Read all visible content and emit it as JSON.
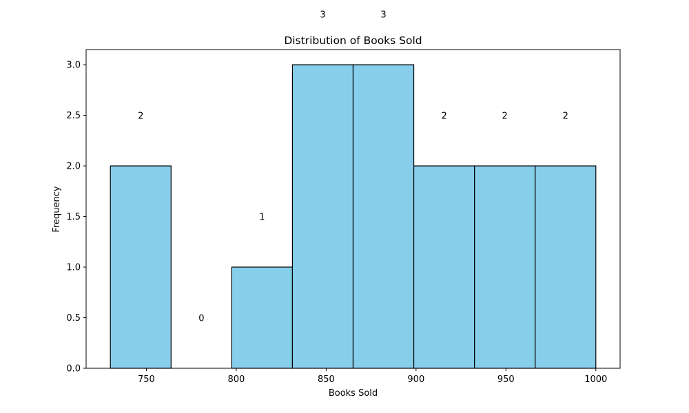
{
  "chart_data": {
    "type": "bar",
    "title": "Distribution of Books Sold",
    "xlabel": "Books Sold",
    "ylabel": "Frequency",
    "bin_edges": [
      730,
      763.75,
      797.5,
      831.25,
      865,
      898.75,
      932.5,
      966.25,
      1000
    ],
    "values": [
      2,
      0,
      1,
      3,
      3,
      2,
      2,
      2
    ],
    "data_labels": [
      "2",
      "0",
      "1",
      "3",
      "3",
      "2",
      "2",
      "2"
    ],
    "xlim": [
      716.5,
      1013.5
    ],
    "ylim": [
      0,
      3.15
    ],
    "xticks": [
      750,
      800,
      850,
      900,
      950,
      1000
    ],
    "xtick_labels": [
      "750",
      "800",
      "850",
      "900",
      "950",
      "1000"
    ],
    "yticks": [
      0,
      0.5,
      1.0,
      1.5,
      2.0,
      2.5,
      3.0
    ],
    "ytick_labels": [
      "0.0",
      "0.5",
      "1.0",
      "1.5",
      "2.0",
      "2.5",
      "3.0"
    ],
    "bar_color": "#87CEEB",
    "edge_color": "#000000",
    "grid": false,
    "legend": "none"
  }
}
